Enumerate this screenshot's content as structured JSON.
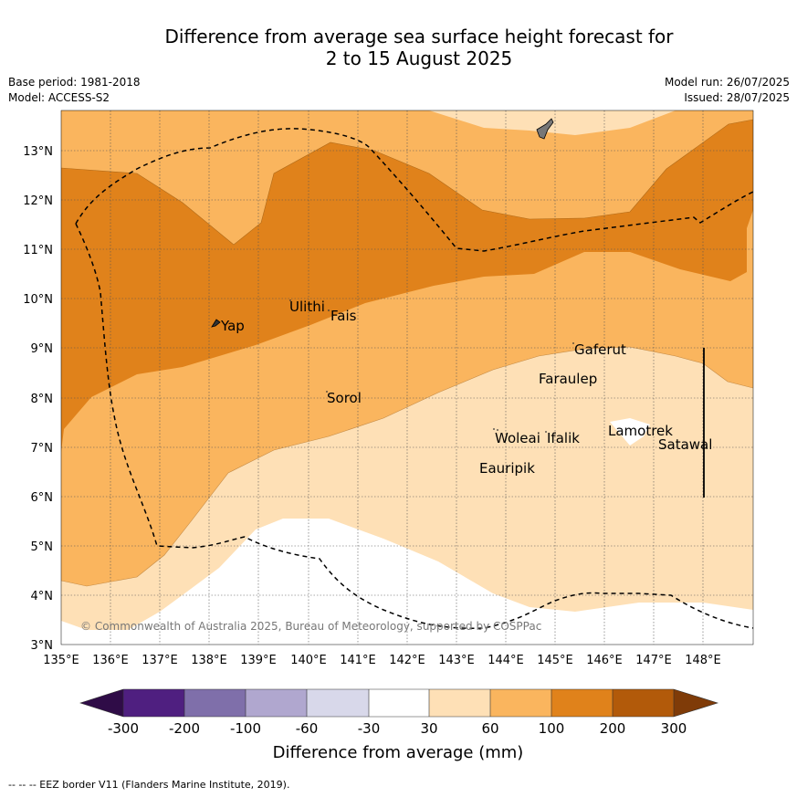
{
  "title_line1": "Difference from average sea surface height forecast for",
  "title_line2": "2 to 15 August 2025",
  "base_period": "Base period: 1981-2018",
  "model": "Model: ACCESS-S2",
  "model_run": "Model run: 26/07/2025",
  "issued": "Issued: 28/07/2025",
  "copyright": "© Commonwealth of Australia 2025, Bureau of Meteorology, supported by COSPPac",
  "footer": "--  --  -- EEZ border V11 (Flanders Marine Institute, 2019).",
  "map": {
    "lon_ticks": [
      "135°E",
      "136°E",
      "137°E",
      "138°E",
      "139°E",
      "140°E",
      "141°E",
      "142°E",
      "143°E",
      "144°E",
      "145°E",
      "146°E",
      "147°E",
      "148°E"
    ],
    "lat_ticks": [
      "3°N",
      "4°N",
      "5°N",
      "6°N",
      "7°N",
      "8°N",
      "9°N",
      "10°N",
      "11°N",
      "12°N",
      "13°N"
    ],
    "place_labels": [
      "Yap",
      "Ulithi",
      "Fais",
      "Sorol",
      "Gaferut",
      "Faraulep",
      "Woleai",
      "Ifalik",
      "Lamotrek",
      "Satawal",
      "Eauripik"
    ]
  },
  "colorbar": {
    "tick_labels": [
      "-300",
      "-200",
      "-100",
      "-60",
      "-30",
      "30",
      "60",
      "100",
      "200",
      "300"
    ],
    "label": "Difference from average (mm)",
    "colors": [
      "#2f0c47",
      "#4f1f80",
      "#7f6faa",
      "#b0a7cf",
      "#d8d8ea",
      "#ffffff",
      "#fee0b6",
      "#fab55e",
      "#e0821b",
      "#b25a0a",
      "#7f3b08"
    ]
  }
}
